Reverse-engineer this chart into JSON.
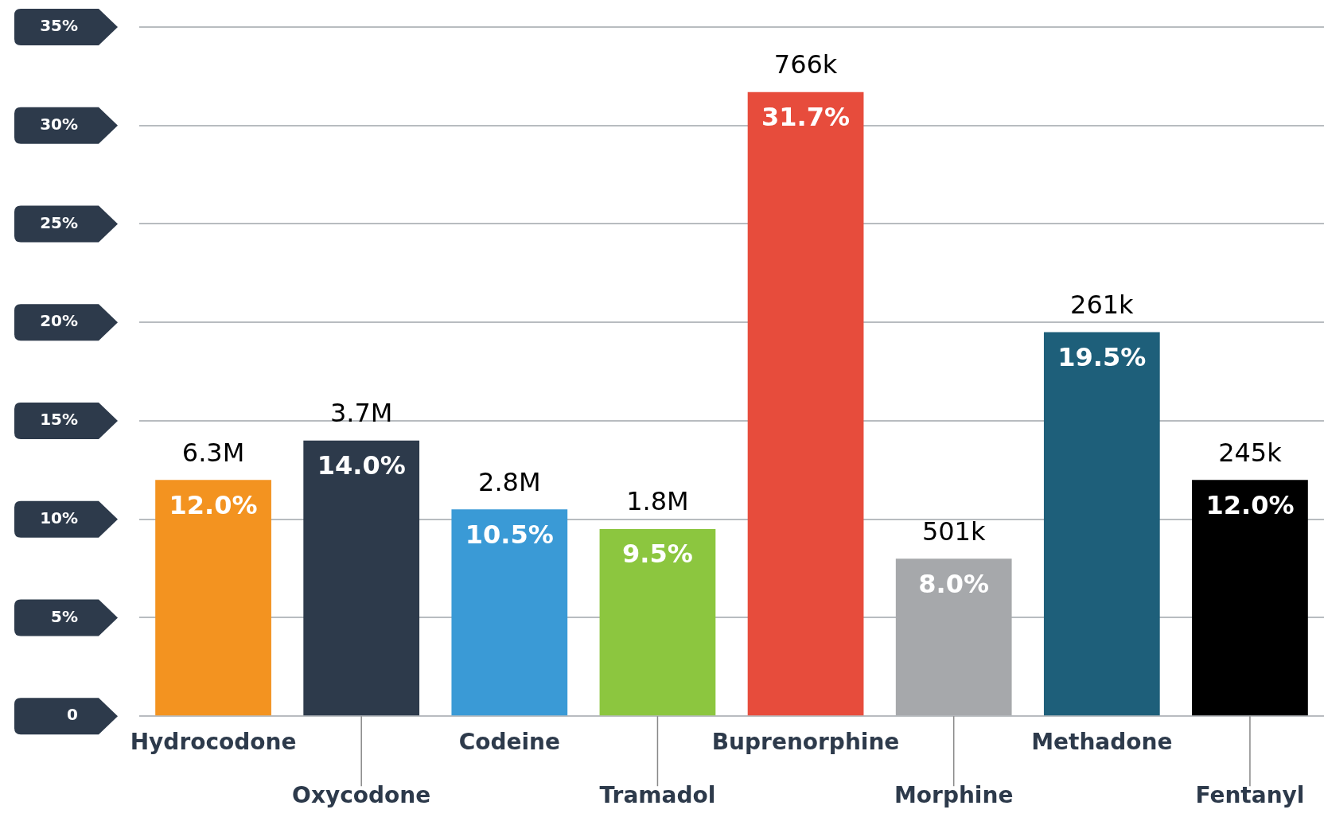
{
  "chart_data": {
    "type": "bar",
    "categories": [
      "Hydrocodone",
      "Oxycodone",
      "Codeine",
      "Tramadol",
      "Buprenorphine",
      "Morphine",
      "Methadone",
      "Fentanyl"
    ],
    "values": [
      12.0,
      14.0,
      10.5,
      9.5,
      31.7,
      8.0,
      19.5,
      12.0
    ],
    "colors": [
      "#f39320",
      "#2d3a4b",
      "#3a9ad6",
      "#8cc63f",
      "#e74c3c",
      "#a6a8ab",
      "#1e5f7a",
      "#000000"
    ],
    "value_labels": [
      "12.0%",
      "14.0%",
      "10.5%",
      "9.5%",
      "31.7%",
      "8.0%",
      "19.5%",
      "12.0%"
    ],
    "ylim": [
      0,
      35
    ],
    "yticks": [
      {
        "value": 0,
        "label": "0"
      },
      {
        "value": 5,
        "label": "5%"
      },
      {
        "value": 10,
        "label": "10%"
      },
      {
        "value": 15,
        "label": "15%"
      },
      {
        "value": 20,
        "label": "20%"
      },
      {
        "value": 25,
        "label": "25%"
      },
      {
        "value": 30,
        "label": "30%"
      },
      {
        "value": 35,
        "label": "35%"
      }
    ],
    "grid": "y",
    "annotations": [
      {
        "text": "6.3M",
        "x": "Hydrocodone",
        "y": 12.0
      },
      {
        "text": "3.7M",
        "x": "Oxycodone",
        "y": 14.0
      },
      {
        "text": "2.8M",
        "x": "Codeine",
        "y": 10.5
      },
      {
        "text": "1.8M",
        "x": "Tramadol",
        "y": 9.5
      },
      {
        "text": "766k",
        "x": "Buprenorphine",
        "y": 31.7
      },
      {
        "text": "501k",
        "x": "Morphine",
        "y": 8.0
      },
      {
        "text": "261k",
        "x": "Methadone",
        "y": 19.5
      },
      {
        "text": "245k",
        "x": "Fentanyl",
        "y": 12.0
      }
    ]
  }
}
